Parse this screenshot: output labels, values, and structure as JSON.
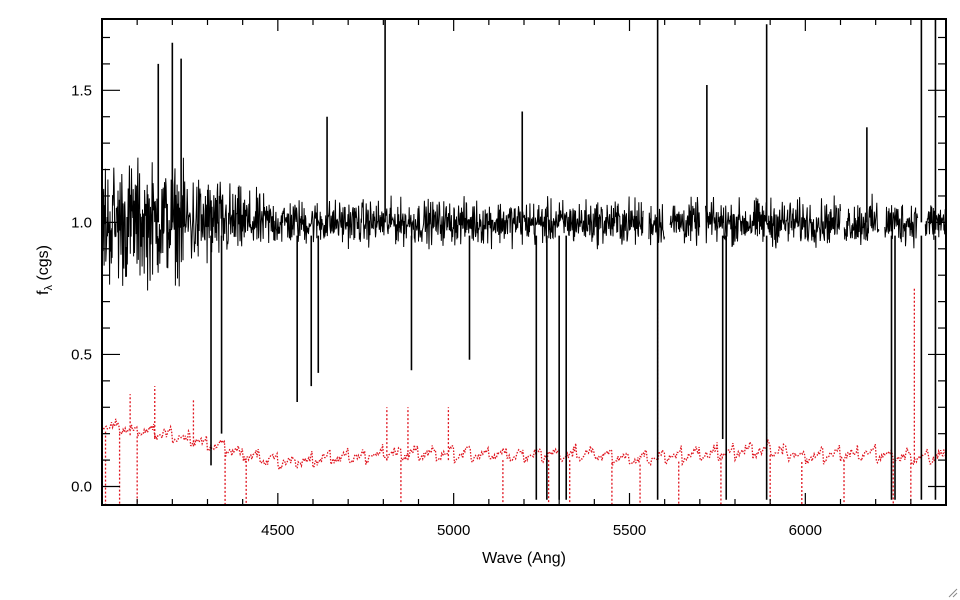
{
  "chart_data": {
    "type": "line",
    "title": "",
    "xlabel": "Wave (Ang)",
    "ylabel": "f_λ (cgs)",
    "ylabel_main": "f",
    "ylabel_sub": "λ",
    "ylabel_unit": " (cgs)",
    "xlim": [
      4000,
      6400
    ],
    "ylim": [
      -0.07,
      1.77
    ],
    "grid": false,
    "legend": "none",
    "x_ticks": [
      4500,
      5000,
      5500,
      6000
    ],
    "y_ticks": [
      0.0,
      0.5,
      1.0,
      1.5
    ],
    "x_tick_labels": [
      "4500",
      "5000",
      "5500",
      "6000"
    ],
    "y_tick_labels": [
      "0.0",
      "0.5",
      "1.0",
      "1.5"
    ],
    "colors": {
      "axes": "#000000",
      "flux": "#000000",
      "error": "#e0141e"
    },
    "series": [
      {
        "role": "flux spectrum (solid black)",
        "style": "solid",
        "x": [
          4000,
          4100,
          4200,
          4300,
          4400,
          4500,
          4600,
          4700,
          4800,
          4900,
          5000,
          5100,
          5200,
          5300,
          5400,
          5500,
          5600,
          5700,
          5800,
          5900,
          6000,
          6100,
          6200,
          6300,
          6400
        ],
        "y": [
          1.0,
          1.0,
          1.0,
          1.0,
          1.0,
          1.0,
          1.0,
          1.0,
          1.0,
          1.0,
          1.0,
          1.0,
          1.0,
          1.0,
          1.0,
          1.0,
          1.0,
          1.0,
          1.0,
          1.0,
          1.0,
          1.0,
          1.0,
          1.0,
          1.0
        ],
        "scatter_half_width": [
          0.35,
          0.33,
          0.3,
          0.25,
          0.18,
          0.13,
          0.12,
          0.12,
          0.12,
          0.12,
          0.12,
          0.12,
          0.12,
          0.12,
          0.12,
          0.13,
          0.12,
          0.12,
          0.12,
          0.13,
          0.12,
          0.12,
          0.13,
          0.12,
          0.12
        ],
        "spikes": [
          {
            "x": 4200,
            "y": 1.68
          },
          {
            "x": 4225,
            "y": 1.62
          },
          {
            "x": 4160,
            "y": 1.6
          },
          {
            "x": 4805,
            "y": 1.77
          },
          {
            "x": 4640,
            "y": 1.4
          },
          {
            "x": 5195,
            "y": 1.42
          },
          {
            "x": 5580,
            "y": 1.77
          },
          {
            "x": 5720,
            "y": 1.52
          },
          {
            "x": 5890,
            "y": 1.75
          },
          {
            "x": 6175,
            "y": 1.36
          },
          {
            "x": 6330,
            "y": 1.77
          },
          {
            "x": 6370,
            "y": 1.77
          }
        ],
        "dips": [
          {
            "x": 4310,
            "y": 0.08
          },
          {
            "x": 4340,
            "y": 0.2
          },
          {
            "x": 4555,
            "y": 0.32
          },
          {
            "x": 4595,
            "y": 0.38
          },
          {
            "x": 4615,
            "y": 0.43
          },
          {
            "x": 4880,
            "y": 0.44
          },
          {
            "x": 5045,
            "y": 0.48
          },
          {
            "x": 5235,
            "y": -0.05
          },
          {
            "x": 5265,
            "y": -0.05
          },
          {
            "x": 5300,
            "y": -0.05
          },
          {
            "x": 5320,
            "y": -0.05
          },
          {
            "x": 5580,
            "y": -0.05
          },
          {
            "x": 5765,
            "y": 0.18
          },
          {
            "x": 5775,
            "y": -0.05
          },
          {
            "x": 5890,
            "y": -0.05
          },
          {
            "x": 6245,
            "y": -0.05
          },
          {
            "x": 6255,
            "y": -0.05
          },
          {
            "x": 6330,
            "y": -0.05
          },
          {
            "x": 6370,
            "y": -0.05
          }
        ],
        "gaps": [
          [
            5540,
            5555
          ],
          [
            5600,
            5615
          ],
          [
            5700,
            5715
          ],
          [
            6100,
            6110
          ],
          [
            6210,
            6225
          ],
          [
            6320,
            6340
          ]
        ]
      },
      {
        "role": "error spectrum (dotted red)",
        "style": "dotted",
        "x": [
          4000,
          4100,
          4200,
          4300,
          4400,
          4500,
          4600,
          4700,
          4800,
          4900,
          5000,
          5100,
          5200,
          5300,
          5400,
          5500,
          5600,
          5700,
          5800,
          5900,
          6000,
          6100,
          6200,
          6300,
          6400
        ],
        "y": [
          0.21,
          0.19,
          0.17,
          0.14,
          0.1,
          0.07,
          0.08,
          0.09,
          0.1,
          0.1,
          0.1,
          0.1,
          0.1,
          0.1,
          0.1,
          0.08,
          0.09,
          0.1,
          0.11,
          0.12,
          0.09,
          0.1,
          0.1,
          0.09,
          0.09
        ],
        "spikes": [
          {
            "x": 4080,
            "y": 0.35
          },
          {
            "x": 4150,
            "y": 0.38
          },
          {
            "x": 4260,
            "y": 0.33
          },
          {
            "x": 4810,
            "y": 0.3
          },
          {
            "x": 4870,
            "y": 0.3
          },
          {
            "x": 4985,
            "y": 0.3
          },
          {
            "x": 5580,
            "y": 0.68
          },
          {
            "x": 5890,
            "y": 0.33
          },
          {
            "x": 6310,
            "y": 0.75
          }
        ],
        "dips": [
          {
            "x": 4010,
            "y": -0.07
          },
          {
            "x": 4050,
            "y": -0.07
          },
          {
            "x": 4100,
            "y": -0.07
          },
          {
            "x": 4350,
            "y": -0.07
          },
          {
            "x": 4410,
            "y": -0.07
          },
          {
            "x": 4850,
            "y": -0.07
          },
          {
            "x": 5140,
            "y": -0.07
          },
          {
            "x": 5270,
            "y": -0.07
          },
          {
            "x": 5330,
            "y": -0.07
          },
          {
            "x": 5450,
            "y": -0.07
          },
          {
            "x": 5530,
            "y": -0.07
          },
          {
            "x": 5640,
            "y": -0.07
          },
          {
            "x": 5760,
            "y": -0.07
          },
          {
            "x": 5900,
            "y": -0.07
          },
          {
            "x": 5990,
            "y": -0.07
          },
          {
            "x": 6110,
            "y": -0.07
          },
          {
            "x": 6250,
            "y": -0.07
          },
          {
            "x": 6300,
            "y": -0.07
          }
        ]
      }
    ]
  }
}
